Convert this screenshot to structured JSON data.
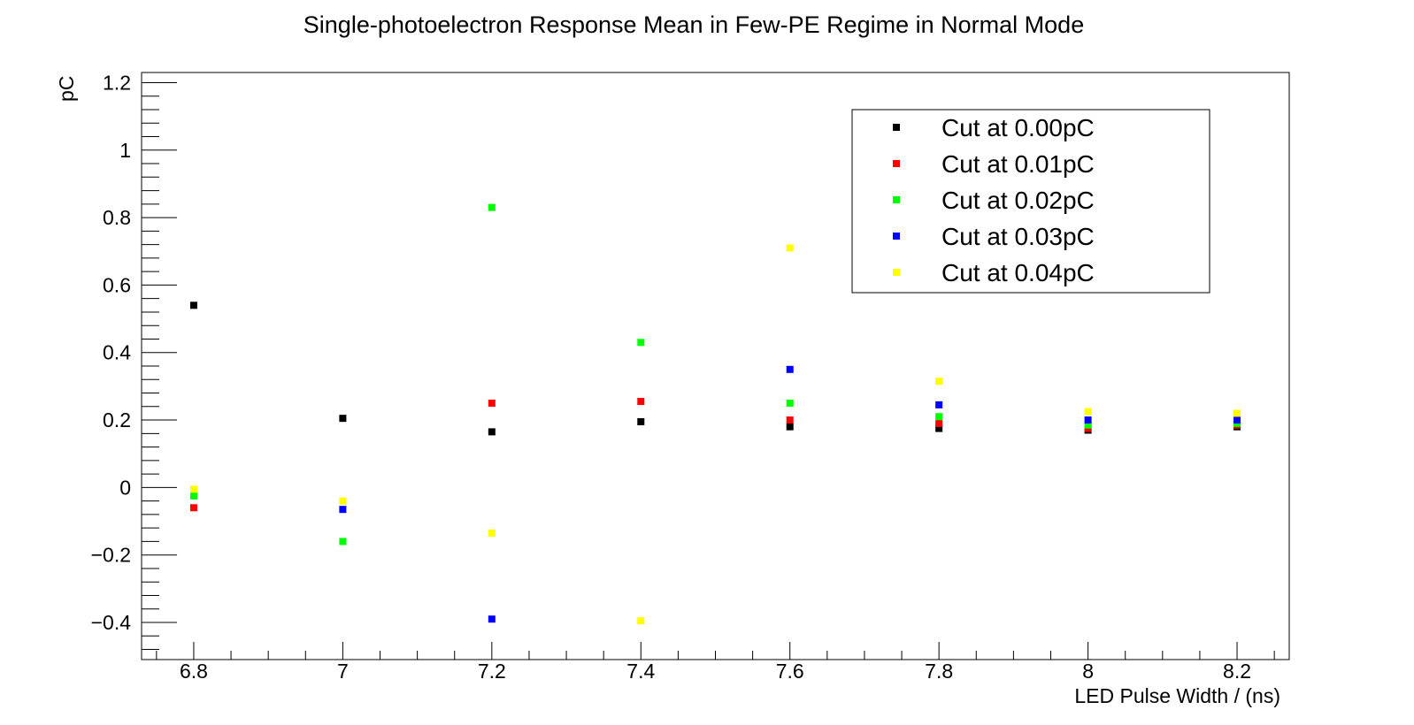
{
  "chart_data": {
    "type": "scatter",
    "title": "Single-photoelectron Response Mean in Few-PE Regime in Normal Mode",
    "xlabel": "LED Pulse Width / (ns)",
    "ylabel": "pC",
    "xlim": [
      6.73,
      8.27
    ],
    "ylim": [
      -0.51,
      1.23
    ],
    "x_ticks": [
      "6.8",
      "7",
      "7.2",
      "7.4",
      "7.6",
      "7.8",
      "8",
      "8.2"
    ],
    "y_ticks": [
      "−0.4",
      "−0.2",
      "0",
      "0.2",
      "0.4",
      "0.6",
      "0.8",
      "1",
      "1.2"
    ],
    "legend_position": "top-right",
    "x": [
      6.8,
      7.0,
      7.2,
      7.4,
      7.6,
      7.8,
      8.0,
      8.2
    ],
    "series": [
      {
        "name": "Cut at 0.00pC",
        "color": "#000000",
        "values": [
          0.54,
          0.205,
          0.165,
          0.195,
          0.18,
          0.175,
          0.17,
          0.18
        ]
      },
      {
        "name": "Cut at 0.01pC",
        "color": "#ff0000",
        "values": [
          -0.06,
          null,
          0.25,
          0.255,
          0.2,
          0.19,
          0.175,
          0.185
        ]
      },
      {
        "name": "Cut at 0.02pC",
        "color": "#00ff00",
        "values": [
          -0.025,
          -0.16,
          0.83,
          0.43,
          0.25,
          0.21,
          0.185,
          0.19
        ]
      },
      {
        "name": "Cut at 0.03pC",
        "color": "#0000ff",
        "values": [
          null,
          -0.065,
          -0.39,
          null,
          0.35,
          0.245,
          0.2,
          0.2
        ]
      },
      {
        "name": "Cut at 0.04pC",
        "color": "#ffff00",
        "values": [
          -0.005,
          -0.04,
          -0.135,
          -0.395,
          0.71,
          0.315,
          0.225,
          0.22
        ]
      }
    ]
  }
}
